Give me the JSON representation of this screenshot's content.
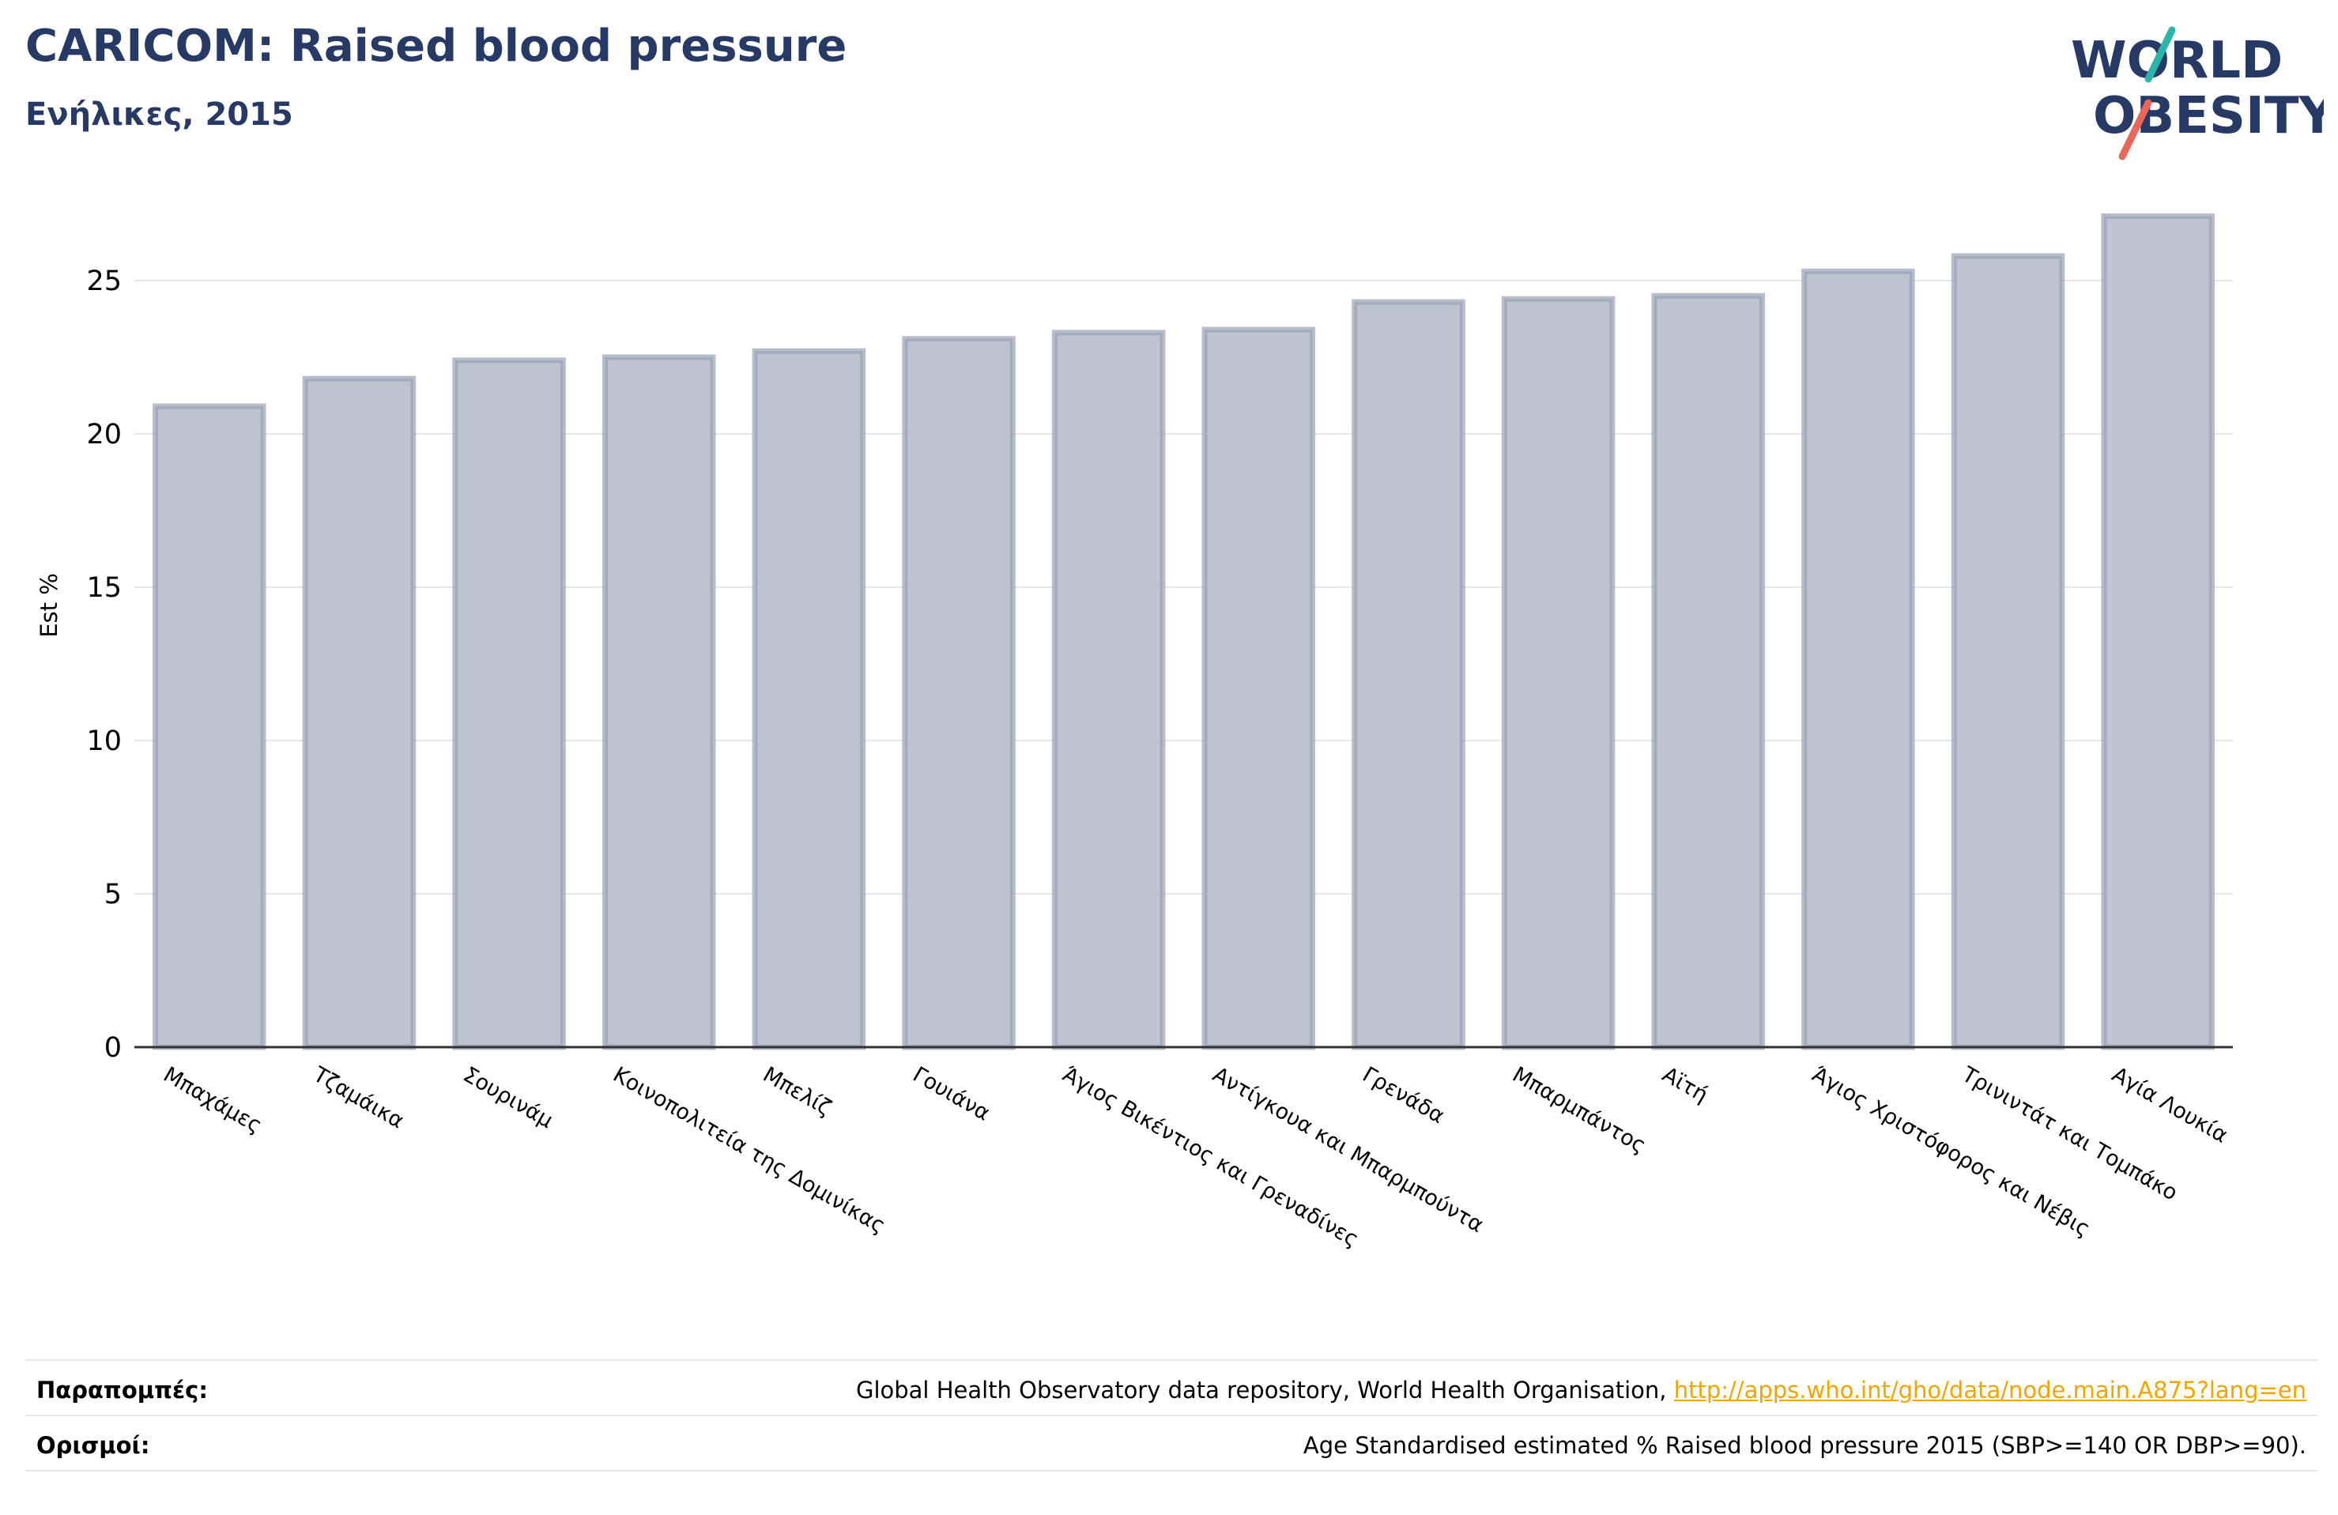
{
  "header": {
    "title": "CARICOM: Raised blood pressure",
    "subtitle": "Ενήλικες, 2015"
  },
  "logo": {
    "line1": "WORLD",
    "line2": "OBESITY",
    "text_color": "#273a66",
    "slash_top_color": "#2bb5a8",
    "slash_bottom_color": "#e8665a"
  },
  "chart_data": {
    "type": "bar",
    "ylabel": "Est %",
    "ylim": [
      0,
      27.5
    ],
    "yticks": [
      0,
      5,
      10,
      15,
      20,
      25
    ],
    "grid": true,
    "bar_fill": "#bfc3cf",
    "bar_edge": "#9aa1b7",
    "categories": [
      "Μπαχάμες",
      "Τζαμάικα",
      "Σουρινάμ",
      "Κοινοπολιτεία της Δομινίκας",
      "Μπελίζ",
      "Γουιάνα",
      "Άγιος Βικέντιος και Γρεναδίνες",
      "Αντίγκουα και Μπαρμπούντα",
      "Γρενάδα",
      "Μπαρμπάντος",
      "Αϊτή",
      "Άγιος Χριστόφορος και Νέβις",
      "Τρινιντάτ και Τομπάκο",
      "Αγία Λουκία"
    ],
    "values": [
      20.9,
      21.8,
      22.4,
      22.5,
      22.7,
      23.1,
      23.3,
      23.4,
      24.3,
      24.4,
      24.5,
      25.3,
      25.8,
      27.1
    ]
  },
  "footer": {
    "references_label": "Παραπομπές:",
    "references_text": "Global Health Observatory data repository, World Health Organisation, ",
    "references_link": "http://apps.who.int/gho/data/node.main.A875?lang=en",
    "definitions_label": "Ορισμοί:",
    "definitions_text": "Age Standardised estimated % Raised blood pressure 2015 (SBP>=140 OR DBP>=90)."
  }
}
